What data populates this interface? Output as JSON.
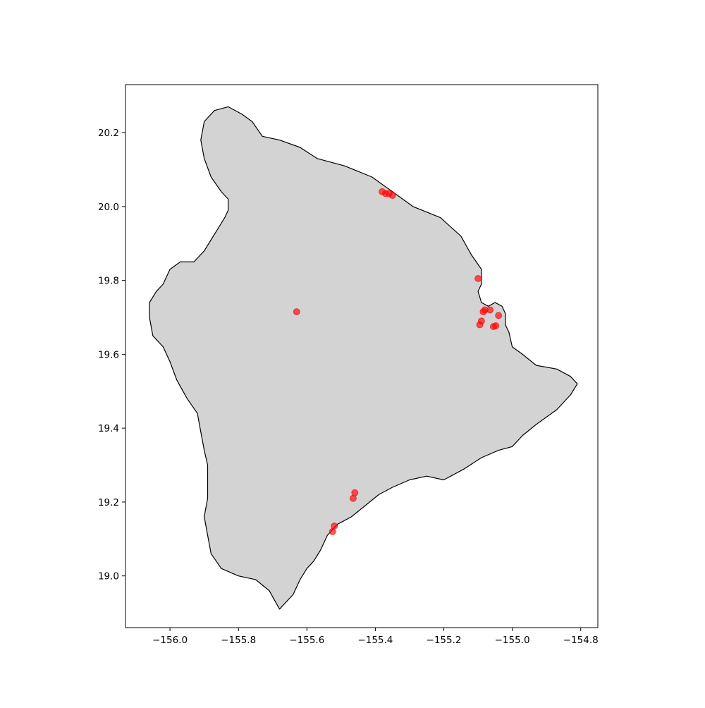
{
  "chart_data": {
    "type": "scatter",
    "title": "",
    "xlabel": "",
    "ylabel": "",
    "xlim": [
      -156.13,
      -154.75
    ],
    "ylim": [
      18.86,
      20.33
    ],
    "xticks": [
      {
        "value": -156.0,
        "label": "−156.0"
      },
      {
        "value": -155.8,
        "label": "−155.8"
      },
      {
        "value": -155.6,
        "label": "−155.6"
      },
      {
        "value": -155.4,
        "label": "−155.4"
      },
      {
        "value": -155.2,
        "label": "−155.2"
      },
      {
        "value": -155.0,
        "label": "−155.0"
      },
      {
        "value": -154.8,
        "label": "−154.8"
      }
    ],
    "yticks": [
      {
        "value": 19.0,
        "label": "19.0"
      },
      {
        "value": 19.2,
        "label": "19.2"
      },
      {
        "value": 19.4,
        "label": "19.4"
      },
      {
        "value": 19.6,
        "label": "19.6"
      },
      {
        "value": 19.8,
        "label": "19.8"
      },
      {
        "value": 20.0,
        "label": "20.0"
      },
      {
        "value": 20.2,
        "label": "20.2"
      }
    ],
    "grid": false,
    "legend": "none",
    "land_color": "#d3d3d3",
    "coast_color": "#000000",
    "point_color": "#ff0000",
    "island_outline": [
      [
        -155.87,
        20.26
      ],
      [
        -155.83,
        20.27
      ],
      [
        -155.79,
        20.25
      ],
      [
        -155.76,
        20.23
      ],
      [
        -155.73,
        20.19
      ],
      [
        -155.68,
        20.18
      ],
      [
        -155.62,
        20.16
      ],
      [
        -155.57,
        20.13
      ],
      [
        -155.49,
        20.11
      ],
      [
        -155.41,
        20.08
      ],
      [
        -155.35,
        20.04
      ],
      [
        -155.29,
        20.0
      ],
      [
        -155.21,
        19.97
      ],
      [
        -155.15,
        19.92
      ],
      [
        -155.12,
        19.87
      ],
      [
        -155.09,
        19.83
      ],
      [
        -155.09,
        19.79
      ],
      [
        -155.1,
        19.77
      ],
      [
        -155.09,
        19.74
      ],
      [
        -155.07,
        19.73
      ],
      [
        -155.05,
        19.74
      ],
      [
        -155.03,
        19.73
      ],
      [
        -155.02,
        19.71
      ],
      [
        -155.02,
        19.68
      ],
      [
        -155.01,
        19.66
      ],
      [
        -155.0,
        19.62
      ],
      [
        -154.97,
        19.6
      ],
      [
        -154.93,
        19.57
      ],
      [
        -154.87,
        19.56
      ],
      [
        -154.83,
        19.54
      ],
      [
        -154.81,
        19.52
      ],
      [
        -154.83,
        19.49
      ],
      [
        -154.87,
        19.45
      ],
      [
        -154.93,
        19.41
      ],
      [
        -154.97,
        19.38
      ],
      [
        -155.0,
        19.35
      ],
      [
        -155.04,
        19.34
      ],
      [
        -155.09,
        19.32
      ],
      [
        -155.14,
        19.29
      ],
      [
        -155.2,
        19.26
      ],
      [
        -155.25,
        19.27
      ],
      [
        -155.3,
        19.26
      ],
      [
        -155.35,
        19.24
      ],
      [
        -155.39,
        19.22
      ],
      [
        -155.43,
        19.19
      ],
      [
        -155.47,
        19.16
      ],
      [
        -155.51,
        19.14
      ],
      [
        -155.54,
        19.11
      ],
      [
        -155.56,
        19.07
      ],
      [
        -155.58,
        19.04
      ],
      [
        -155.6,
        19.02
      ],
      [
        -155.62,
        18.99
      ],
      [
        -155.64,
        18.95
      ],
      [
        -155.68,
        18.91
      ],
      [
        -155.71,
        18.96
      ],
      [
        -155.75,
        18.99
      ],
      [
        -155.8,
        19.0
      ],
      [
        -155.85,
        19.02
      ],
      [
        -155.88,
        19.06
      ],
      [
        -155.89,
        19.11
      ],
      [
        -155.9,
        19.16
      ],
      [
        -155.89,
        19.21
      ],
      [
        -155.89,
        19.26
      ],
      [
        -155.89,
        19.3
      ],
      [
        -155.9,
        19.34
      ],
      [
        -155.91,
        19.39
      ],
      [
        -155.92,
        19.44
      ],
      [
        -155.95,
        19.48
      ],
      [
        -155.98,
        19.53
      ],
      [
        -156.0,
        19.58
      ],
      [
        -156.02,
        19.62
      ],
      [
        -156.05,
        19.65
      ],
      [
        -156.06,
        19.7
      ],
      [
        -156.06,
        19.74
      ],
      [
        -156.04,
        19.77
      ],
      [
        -156.02,
        19.79
      ],
      [
        -156.0,
        19.83
      ],
      [
        -155.97,
        19.85
      ],
      [
        -155.93,
        19.85
      ],
      [
        -155.9,
        19.88
      ],
      [
        -155.88,
        19.91
      ],
      [
        -155.86,
        19.94
      ],
      [
        -155.84,
        19.97
      ],
      [
        -155.83,
        19.99
      ],
      [
        -155.83,
        20.02
      ],
      [
        -155.85,
        20.04
      ],
      [
        -155.88,
        20.08
      ],
      [
        -155.9,
        20.13
      ],
      [
        -155.91,
        20.18
      ],
      [
        -155.9,
        20.23
      ],
      [
        -155.87,
        20.26
      ]
    ],
    "points": [
      {
        "x": -155.38,
        "y": 20.04
      },
      {
        "x": -155.37,
        "y": 20.035
      },
      {
        "x": -155.36,
        "y": 20.035
      },
      {
        "x": -155.35,
        "y": 20.03
      },
      {
        "x": -155.1,
        "y": 19.805
      },
      {
        "x": -155.63,
        "y": 19.715
      },
      {
        "x": -155.08,
        "y": 19.72
      },
      {
        "x": -155.085,
        "y": 19.715
      },
      {
        "x": -155.065,
        "y": 19.72
      },
      {
        "x": -155.04,
        "y": 19.705
      },
      {
        "x": -155.09,
        "y": 19.69
      },
      {
        "x": -155.095,
        "y": 19.68
      },
      {
        "x": -155.055,
        "y": 19.675
      },
      {
        "x": -155.048,
        "y": 19.677
      },
      {
        "x": -155.46,
        "y": 19.225
      },
      {
        "x": -155.465,
        "y": 19.21
      },
      {
        "x": -155.52,
        "y": 19.135
      },
      {
        "x": -155.525,
        "y": 19.12
      }
    ]
  }
}
